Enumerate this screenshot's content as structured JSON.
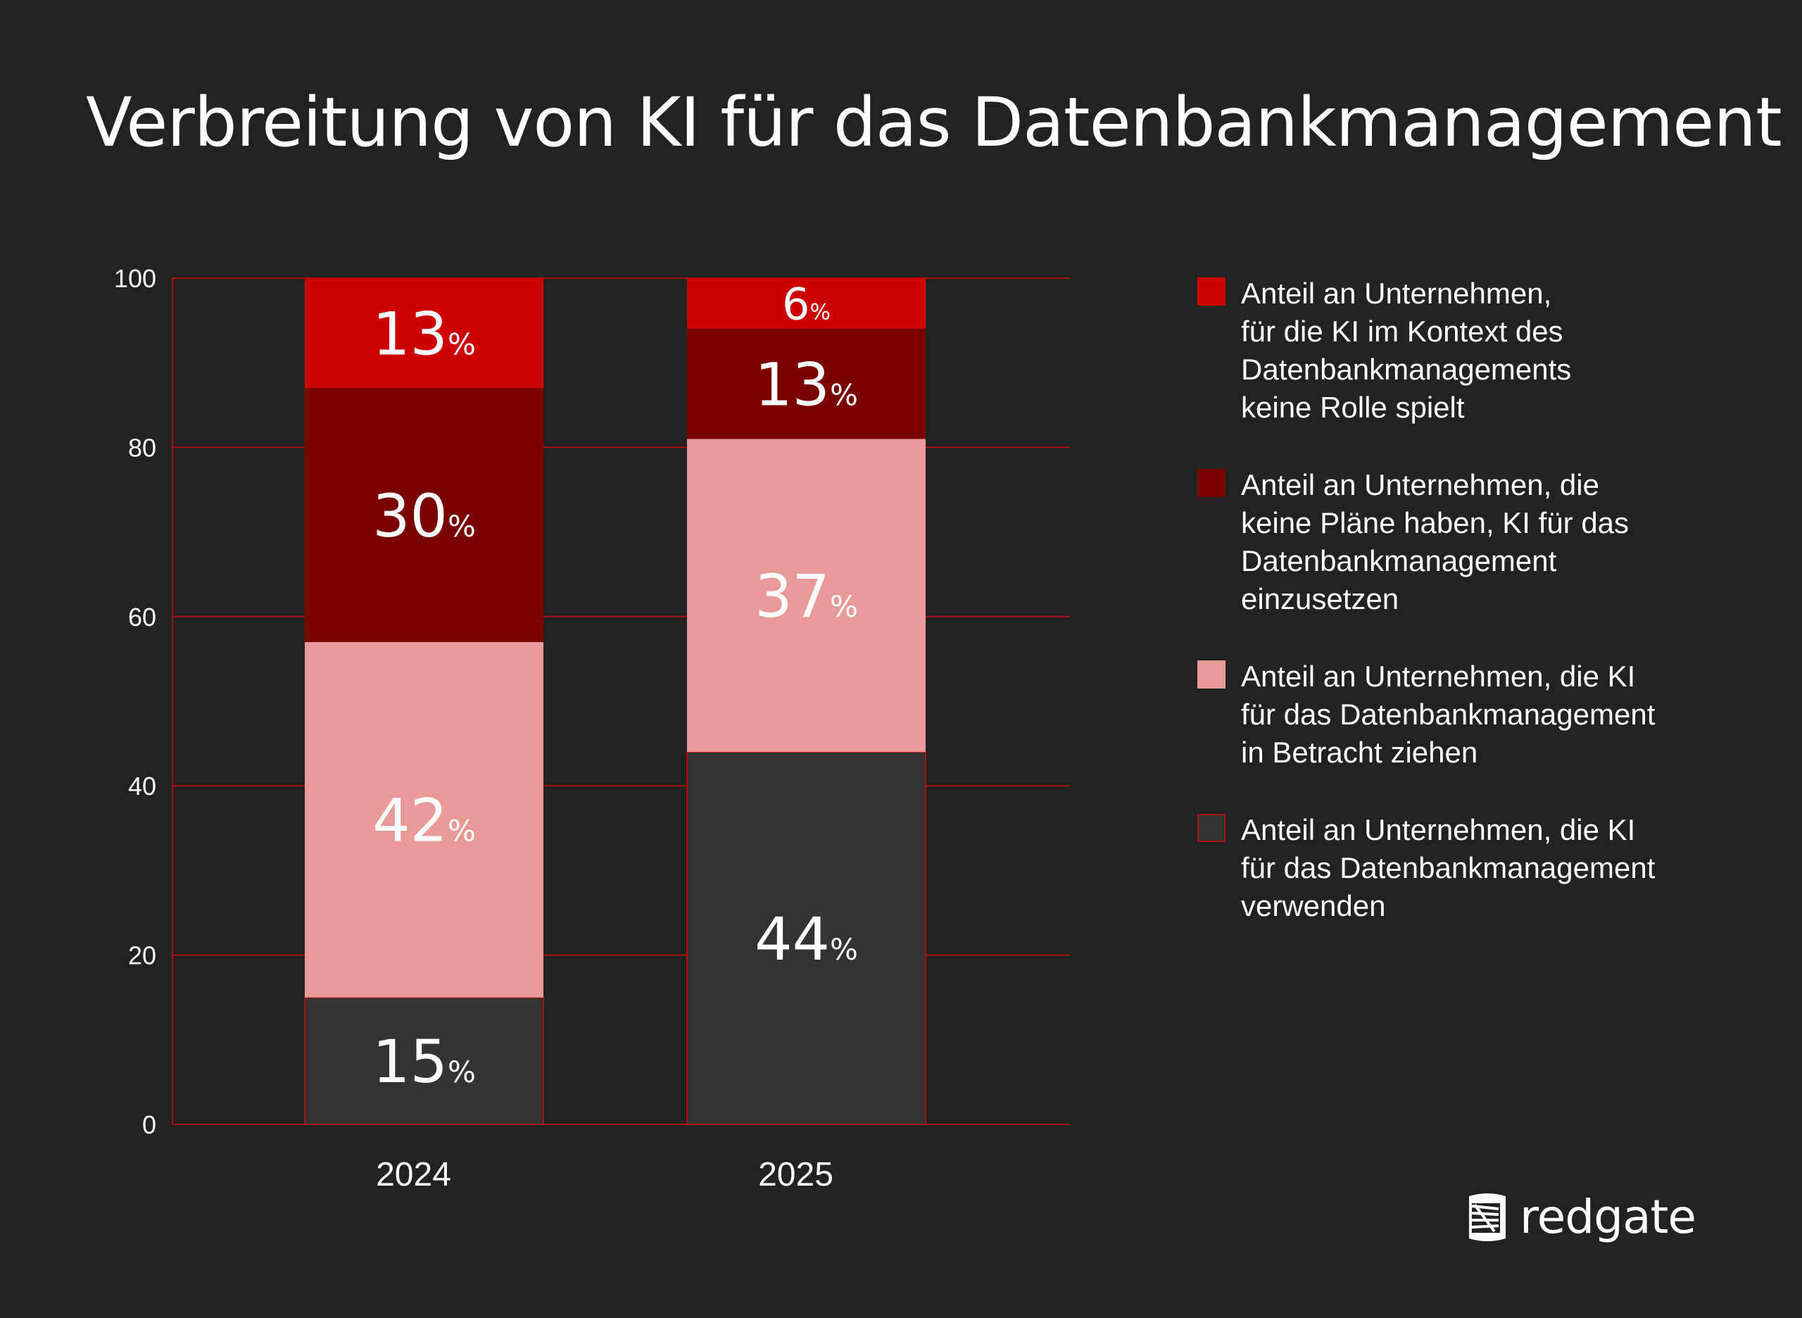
{
  "chart_data": {
    "type": "stacked-bar",
    "title": "Verbreitung von KI für das Datenbankmanagement",
    "categories": [
      "2024",
      "2025"
    ],
    "ylim": [
      0,
      100
    ],
    "yticks": [
      "0",
      "20",
      "40",
      "60",
      "80",
      "100"
    ],
    "grid": true,
    "legend_position": "right",
    "series": [
      {
        "name": "Anteil an Unternehmen, die KI für das Datenbankmanagement verwenden",
        "values": [
          15,
          44
        ],
        "color": "#333333",
        "labels": [
          "15",
          "44"
        ]
      },
      {
        "name": "Anteil an Unternehmen, die KI für das Datenbankmanagement in Betracht ziehen",
        "values": [
          42,
          37
        ],
        "color": "#EA9999",
        "labels": [
          "42",
          "37"
        ]
      },
      {
        "name": "Anteil an Unternehmen, die keine Pläne haben, KI für das Datenbankmanagement einzusetzen",
        "values": [
          30,
          13
        ],
        "color": "#7A0000",
        "labels": [
          "30",
          "13"
        ]
      },
      {
        "name": "Anteil an Unternehmen, für die KI im Kontext des Datenbankmanagements keine Rolle spielt",
        "values": [
          13,
          6
        ],
        "color": "#CC0000",
        "labels": [
          "13",
          "6"
        ]
      }
    ],
    "label_suffix": "%",
    "grid_color": "#AA1111"
  },
  "legend": [
    {
      "lines": [
        "Anteil an Unternehmen,",
        "für die KI im Kontext des",
        "Datenbankmanagements",
        "keine Rolle spielt"
      ],
      "color": "#CC0000"
    },
    {
      "lines": [
        "Anteil an Unternehmen, die",
        "keine Pläne haben, KI für das",
        "Datenbankmanagement",
        "einzusetzen"
      ],
      "color": "#7A0000"
    },
    {
      "lines": [
        "Anteil an Unternehmen, die KI",
        "für das Datenbankmanagement",
        "in Betracht ziehen"
      ],
      "color": "#EA9999"
    },
    {
      "lines": [
        "Anteil an Unternehmen, die KI",
        "für das Datenbankmanagement",
        "verwenden"
      ],
      "color": "#333333"
    }
  ],
  "brand": {
    "name": "redgate",
    "icon": "redgate-database-icon"
  }
}
